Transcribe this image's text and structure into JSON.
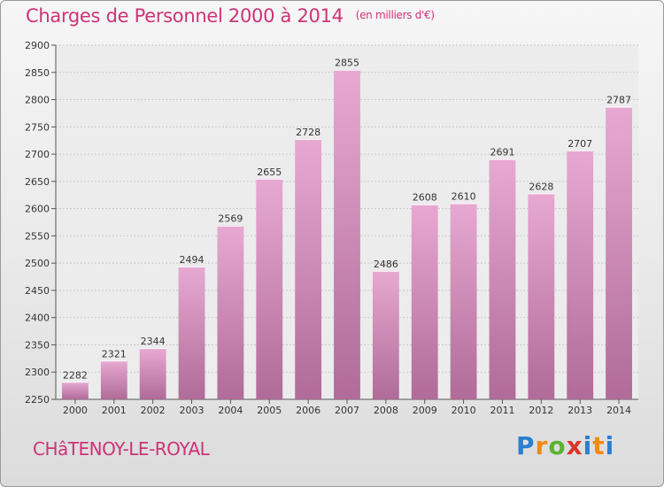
{
  "header": {
    "title": "Charges de Personnel 2000 à 2014",
    "unit": "(en milliers d'€)"
  },
  "footer": {
    "place": "CHâTENOY-LE-ROYAL",
    "brand": "Proxiti"
  },
  "colors": {
    "title": "#cc3377",
    "bar_top": "#e7a9d1",
    "bar_bottom": "#b06b99"
  },
  "chart_data": {
    "type": "bar",
    "title": "Charges de Personnel 2000 à 2014",
    "subtitle": "(en milliers d'€)",
    "xlabel": "",
    "ylabel": "",
    "categories": [
      "2000",
      "2001",
      "2002",
      "2003",
      "2004",
      "2005",
      "2006",
      "2007",
      "2008",
      "2009",
      "2010",
      "2011",
      "2012",
      "2013",
      "2014"
    ],
    "values": [
      2282,
      2321,
      2344,
      2494,
      2569,
      2655,
      2728,
      2855,
      2486,
      2608,
      2610,
      2691,
      2628,
      2707,
      2787
    ],
    "ylim": [
      2250,
      2900
    ],
    "yticks": [
      2250,
      2300,
      2350,
      2400,
      2450,
      2500,
      2550,
      2600,
      2650,
      2700,
      2750,
      2800,
      2850,
      2900
    ],
    "grid": true,
    "legend": "none"
  }
}
